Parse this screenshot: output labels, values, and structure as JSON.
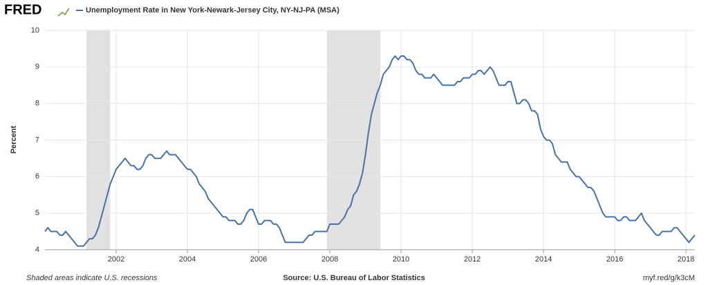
{
  "chart_data": {
    "type": "line",
    "logo": "FRED",
    "title": "Unemployment Rate in New York-Newark-Jersey City, NY-NJ-PA (MSA)",
    "ylabel": "Percent",
    "note": "Shaded areas indicate U.S. recessions",
    "source": "Source: U.S. Bureau of Labor Statistics",
    "link": "myf.red/g/k3cM",
    "xlim": [
      2000,
      2018.25
    ],
    "xticks": [
      2002,
      2004,
      2006,
      2008,
      2010,
      2012,
      2014,
      2016,
      2018
    ],
    "ylim": [
      4,
      10
    ],
    "yticks": [
      4,
      5,
      6,
      7,
      8,
      9,
      10
    ],
    "grid": true,
    "recessions": [
      [
        2001.167,
        2001.833
      ],
      [
        2007.917,
        2009.417
      ]
    ],
    "recession_color": "#e1e1e1",
    "x": [
      2000,
      2000.083,
      2000.167,
      2000.25,
      2000.333,
      2000.417,
      2000.5,
      2000.583,
      2000.667,
      2000.75,
      2000.833,
      2000.917,
      2001,
      2001.083,
      2001.167,
      2001.25,
      2001.333,
      2001.417,
      2001.5,
      2001.583,
      2001.667,
      2001.75,
      2001.833,
      2001.917,
      2002,
      2002.083,
      2002.167,
      2002.25,
      2002.333,
      2002.417,
      2002.5,
      2002.583,
      2002.667,
      2002.75,
      2002.833,
      2002.917,
      2003,
      2003.083,
      2003.167,
      2003.25,
      2003.333,
      2003.417,
      2003.5,
      2003.583,
      2003.667,
      2003.75,
      2003.833,
      2003.917,
      2004,
      2004.083,
      2004.167,
      2004.25,
      2004.333,
      2004.417,
      2004.5,
      2004.583,
      2004.667,
      2004.75,
      2004.833,
      2004.917,
      2005,
      2005.083,
      2005.167,
      2005.25,
      2005.333,
      2005.417,
      2005.5,
      2005.583,
      2005.667,
      2005.75,
      2005.833,
      2005.917,
      2006,
      2006.083,
      2006.167,
      2006.25,
      2006.333,
      2006.417,
      2006.5,
      2006.583,
      2006.667,
      2006.75,
      2006.833,
      2006.917,
      2007,
      2007.083,
      2007.167,
      2007.25,
      2007.333,
      2007.417,
      2007.5,
      2007.583,
      2007.667,
      2007.75,
      2007.833,
      2007.917,
      2008,
      2008.083,
      2008.167,
      2008.25,
      2008.333,
      2008.417,
      2008.5,
      2008.583,
      2008.667,
      2008.75,
      2008.833,
      2008.917,
      2009,
      2009.083,
      2009.167,
      2009.25,
      2009.333,
      2009.417,
      2009.5,
      2009.583,
      2009.667,
      2009.75,
      2009.833,
      2009.917,
      2010,
      2010.083,
      2010.167,
      2010.25,
      2010.333,
      2010.417,
      2010.5,
      2010.583,
      2010.667,
      2010.75,
      2010.833,
      2010.917,
      2011,
      2011.083,
      2011.167,
      2011.25,
      2011.333,
      2011.417,
      2011.5,
      2011.583,
      2011.667,
      2011.75,
      2011.833,
      2011.917,
      2012,
      2012.083,
      2012.167,
      2012.25,
      2012.333,
      2012.417,
      2012.5,
      2012.583,
      2012.667,
      2012.75,
      2012.833,
      2012.917,
      2013,
      2013.083,
      2013.167,
      2013.25,
      2013.333,
      2013.417,
      2013.5,
      2013.583,
      2013.667,
      2013.75,
      2013.833,
      2013.917,
      2014,
      2014.083,
      2014.167,
      2014.25,
      2014.333,
      2014.417,
      2014.5,
      2014.583,
      2014.667,
      2014.75,
      2014.833,
      2014.917,
      2015,
      2015.083,
      2015.167,
      2015.25,
      2015.333,
      2015.417,
      2015.5,
      2015.583,
      2015.667,
      2015.75,
      2015.833,
      2015.917,
      2016,
      2016.083,
      2016.167,
      2016.25,
      2016.333,
      2016.417,
      2016.5,
      2016.583,
      2016.667,
      2016.75,
      2016.833,
      2016.917,
      2017,
      2017.083,
      2017.167,
      2017.25,
      2017.333,
      2017.417,
      2017.5,
      2017.583,
      2017.667,
      2017.75,
      2017.833,
      2017.917,
      2018,
      2018.083,
      2018.167,
      2018.25
    ],
    "series": [
      {
        "name": "Unemployment Rate in New York-Newark-Jersey City, NY-NJ-PA (MSA)",
        "color": "#4572a7",
        "values": [
          4.5,
          4.6,
          4.5,
          4.5,
          4.5,
          4.4,
          4.4,
          4.5,
          4.4,
          4.3,
          4.2,
          4.1,
          4.1,
          4.1,
          4.2,
          4.3,
          4.3,
          4.4,
          4.6,
          4.9,
          5.2,
          5.5,
          5.8,
          6.0,
          6.2,
          6.3,
          6.4,
          6.5,
          6.4,
          6.3,
          6.3,
          6.2,
          6.2,
          6.3,
          6.5,
          6.6,
          6.6,
          6.5,
          6.5,
          6.5,
          6.6,
          6.7,
          6.6,
          6.6,
          6.6,
          6.5,
          6.4,
          6.3,
          6.2,
          6.2,
          6.1,
          6.0,
          5.8,
          5.7,
          5.6,
          5.4,
          5.3,
          5.2,
          5.1,
          5.0,
          4.9,
          4.9,
          4.8,
          4.8,
          4.8,
          4.7,
          4.7,
          4.8,
          5.0,
          5.1,
          5.1,
          4.9,
          4.7,
          4.7,
          4.8,
          4.8,
          4.8,
          4.7,
          4.7,
          4.6,
          4.4,
          4.2,
          4.2,
          4.2,
          4.2,
          4.2,
          4.2,
          4.2,
          4.3,
          4.4,
          4.4,
          4.5,
          4.5,
          4.5,
          4.5,
          4.5,
          4.7,
          4.7,
          4.7,
          4.7,
          4.8,
          4.9,
          5.1,
          5.2,
          5.5,
          5.6,
          5.8,
          6.1,
          6.6,
          7.2,
          7.7,
          8.0,
          8.3,
          8.5,
          8.8,
          8.9,
          9.0,
          9.2,
          9.3,
          9.2,
          9.3,
          9.3,
          9.2,
          9.2,
          9.1,
          8.9,
          8.8,
          8.8,
          8.7,
          8.7,
          8.7,
          8.8,
          8.7,
          8.6,
          8.5,
          8.5,
          8.5,
          8.5,
          8.5,
          8.6,
          8.6,
          8.7,
          8.7,
          8.7,
          8.8,
          8.8,
          8.9,
          8.9,
          8.8,
          8.9,
          9.0,
          8.9,
          8.7,
          8.5,
          8.5,
          8.5,
          8.6,
          8.6,
          8.3,
          8.0,
          8.0,
          8.1,
          8.1,
          8.0,
          7.8,
          7.8,
          7.7,
          7.3,
          7.1,
          7.0,
          7.0,
          6.9,
          6.6,
          6.5,
          6.4,
          6.4,
          6.4,
          6.2,
          6.1,
          6.0,
          6.0,
          5.9,
          5.8,
          5.7,
          5.7,
          5.6,
          5.4,
          5.2,
          5.0,
          4.9,
          4.9,
          4.9,
          4.9,
          4.8,
          4.8,
          4.9,
          4.9,
          4.8,
          4.8,
          4.8,
          4.9,
          5.0,
          4.8,
          4.7,
          4.6,
          4.5,
          4.4,
          4.4,
          4.5,
          4.5,
          4.5,
          4.5,
          4.6,
          4.6,
          4.5,
          4.4,
          4.3,
          4.2,
          4.3,
          4.4
        ]
      }
    ]
  }
}
